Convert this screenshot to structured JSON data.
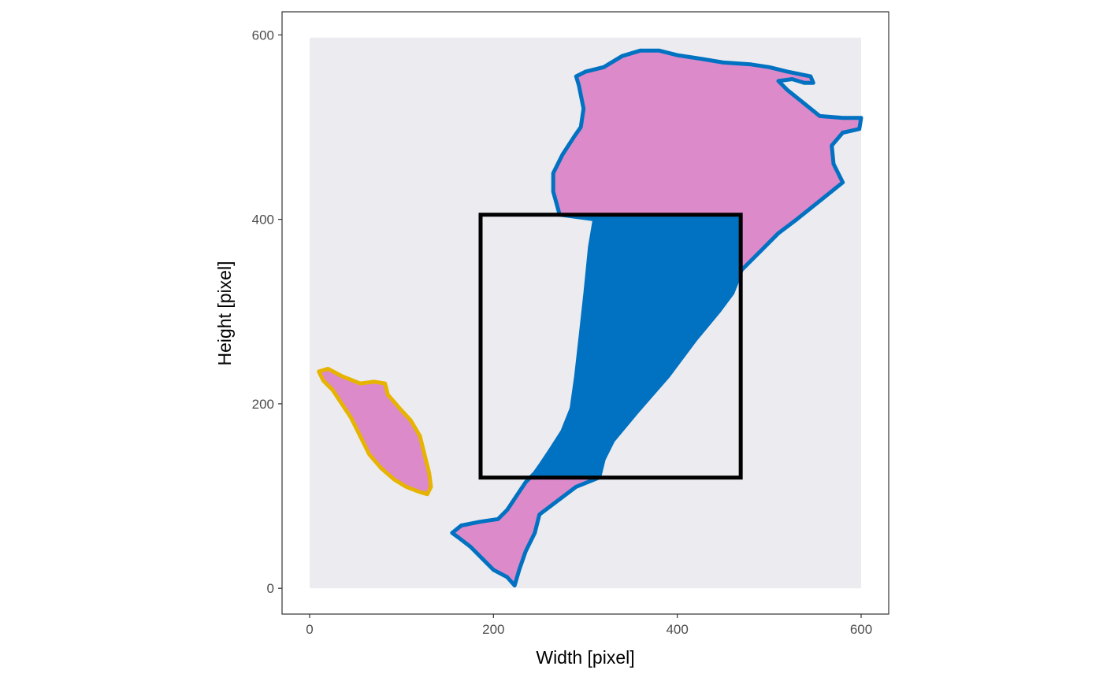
{
  "chart_data": {
    "type": "scatter",
    "title": "",
    "xlabel": "Width [pixel]",
    "ylabel": "Height [pixel]",
    "xlim": [
      -30,
      630
    ],
    "ylim": [
      -28,
      625
    ],
    "x_ticks": [
      0,
      200,
      400,
      600
    ],
    "y_ticks": [
      0,
      200,
      400,
      600
    ],
    "x_tick_labels": [
      "0",
      "200",
      "400",
      "600"
    ],
    "y_tick_labels": [
      "0",
      "200",
      "400",
      "600"
    ],
    "grid": false,
    "legend": "none",
    "background_image": {
      "description_icon": "tissue-slide-image",
      "extent_x": [
        0,
        600
      ],
      "extent_y": [
        0,
        597
      ],
      "background_color": "#ecebef",
      "tissue_color": "#d979c2"
    },
    "selection_box": {
      "x": [
        186,
        469
      ],
      "y": [
        120,
        405
      ],
      "color": "#000000"
    },
    "series": [
      {
        "color": "#0072c1",
        "kind": "tissue-outline",
        "points": [
          [
            223,
            3
          ],
          [
            215,
            12
          ],
          [
            200,
            20
          ],
          [
            190,
            30
          ],
          [
            175,
            45
          ],
          [
            162,
            55
          ],
          [
            155,
            60
          ],
          [
            165,
            68
          ],
          [
            185,
            72
          ],
          [
            205,
            75
          ],
          [
            215,
            85
          ],
          [
            225,
            100
          ],
          [
            235,
            115
          ],
          [
            245,
            125
          ],
          [
            252,
            135
          ],
          [
            262,
            150
          ],
          [
            275,
            170
          ],
          [
            285,
            195
          ],
          [
            290,
            230
          ],
          [
            295,
            275
          ],
          [
            300,
            320
          ],
          [
            305,
            370
          ],
          [
            310,
            400
          ],
          [
            272,
            405
          ],
          [
            265,
            430
          ],
          [
            265,
            450
          ],
          [
            275,
            470
          ],
          [
            288,
            490
          ],
          [
            295,
            500
          ],
          [
            298,
            520
          ],
          [
            293,
            545
          ],
          [
            290,
            555
          ],
          [
            300,
            560
          ],
          [
            320,
            565
          ],
          [
            340,
            577
          ],
          [
            360,
            583
          ],
          [
            380,
            583
          ],
          [
            400,
            578
          ],
          [
            420,
            575
          ],
          [
            450,
            570
          ],
          [
            480,
            568
          ],
          [
            500,
            565
          ],
          [
            520,
            560
          ],
          [
            545,
            555
          ],
          [
            548,
            548
          ],
          [
            538,
            548
          ],
          [
            525,
            552
          ],
          [
            510,
            550
          ],
          [
            520,
            540
          ],
          [
            535,
            528
          ],
          [
            555,
            512
          ],
          [
            580,
            510
          ],
          [
            600,
            510
          ],
          [
            598,
            498
          ],
          [
            580,
            494
          ],
          [
            568,
            480
          ],
          [
            570,
            460
          ],
          [
            580,
            440
          ],
          [
            555,
            420
          ],
          [
            530,
            400
          ],
          [
            510,
            385
          ],
          [
            490,
            365
          ],
          [
            470,
            345
          ],
          [
            460,
            320
          ],
          [
            445,
            300
          ],
          [
            420,
            270
          ],
          [
            390,
            230
          ],
          [
            355,
            190
          ],
          [
            330,
            160
          ],
          [
            320,
            140
          ],
          [
            315,
            120
          ],
          [
            290,
            110
          ],
          [
            270,
            95
          ],
          [
            250,
            80
          ],
          [
            245,
            60
          ],
          [
            235,
            40
          ],
          [
            228,
            20
          ],
          [
            223,
            3
          ]
        ]
      },
      {
        "color": "#e6b400",
        "kind": "tissue-outline",
        "points": [
          [
            10,
            235
          ],
          [
            20,
            238
          ],
          [
            35,
            230
          ],
          [
            55,
            222
          ],
          [
            70,
            224
          ],
          [
            82,
            222
          ],
          [
            85,
            210
          ],
          [
            98,
            195
          ],
          [
            110,
            182
          ],
          [
            120,
            165
          ],
          [
            125,
            145
          ],
          [
            130,
            125
          ],
          [
            132,
            110
          ],
          [
            128,
            102
          ],
          [
            118,
            105
          ],
          [
            105,
            110
          ],
          [
            92,
            118
          ],
          [
            78,
            130
          ],
          [
            65,
            145
          ],
          [
            55,
            165
          ],
          [
            45,
            185
          ],
          [
            35,
            200
          ],
          [
            25,
            215
          ],
          [
            15,
            225
          ],
          [
            10,
            235
          ]
        ]
      }
    ]
  }
}
